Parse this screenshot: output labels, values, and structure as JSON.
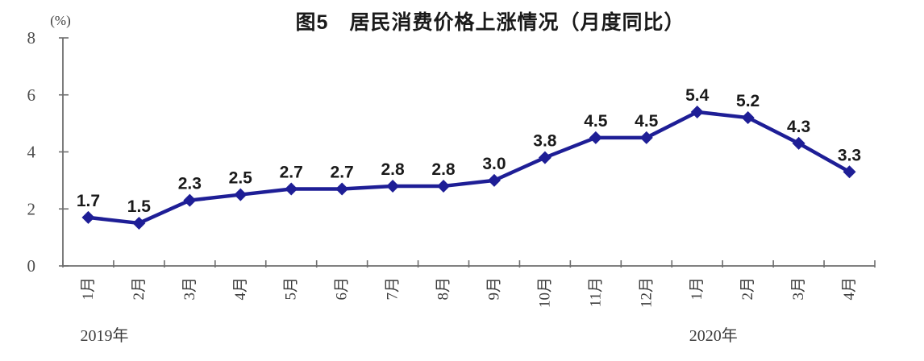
{
  "chart_data": {
    "type": "line",
    "title": "图5　居民消费价格上涨情况（月度同比）",
    "unit_label": "(%)",
    "categories": [
      "1月",
      "2月",
      "3月",
      "4月",
      "5月",
      "6月",
      "7月",
      "8月",
      "9月",
      "10月",
      "11月",
      "12月",
      "1月",
      "2月",
      "3月",
      "4月"
    ],
    "values": [
      1.7,
      1.5,
      2.3,
      2.5,
      2.7,
      2.7,
      2.8,
      2.8,
      3.0,
      3.8,
      4.5,
      4.5,
      5.4,
      5.2,
      4.3,
      3.3
    ],
    "year_annotations": [
      {
        "label": "2019年",
        "category_index": 0
      },
      {
        "label": "2020年",
        "category_index": 12
      }
    ],
    "ylim": [
      0,
      8
    ],
    "yticks": [
      0,
      2,
      4,
      6,
      8
    ],
    "grid": false,
    "legend": "none",
    "marker": "diamond",
    "colors": {
      "line": "#1e1e96",
      "marker": "#1e1e96",
      "axis": "#6e6e6e",
      "tick_label": "#4d4d4d",
      "data_label": "#1a1a1a"
    }
  }
}
